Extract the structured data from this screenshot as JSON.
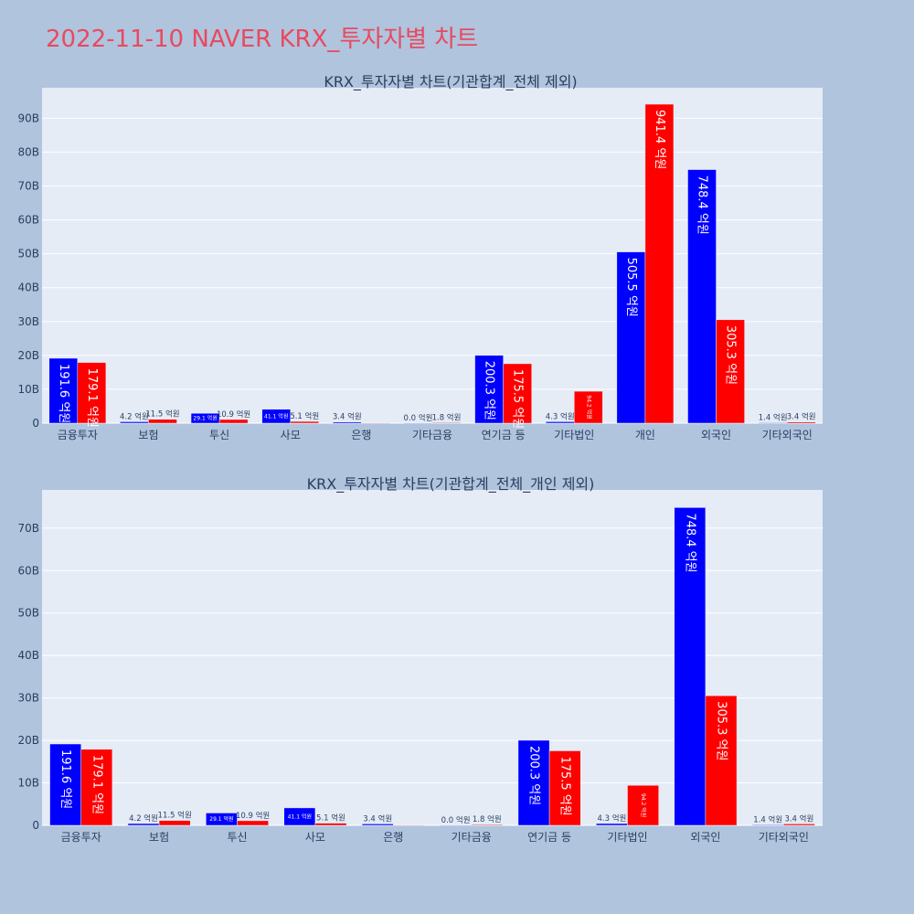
{
  "title": "2022-11-10 NAVER KRX_투자자별 차트",
  "colors": {
    "page_bg": "#b0c4de",
    "plot_bg": "#e5ecf6",
    "grid": "#ffffff",
    "series_a": "#0000ff",
    "series_b": "#ff0000",
    "title_text": "#2a3f5f",
    "main_title": "#e84a5f",
    "tick_text": "#2a3f5f",
    "outside_label": "#2a3f5f",
    "inside_label": "#ffffff"
  },
  "chart_data": [
    {
      "type": "bar",
      "title": "KRX_투자자별 차트(기관합계_전체 제외)",
      "categories": [
        "금융투자",
        "보험",
        "투신",
        "사모",
        "은행",
        "기타금융",
        "연기금 등",
        "기타법인",
        "개인",
        "외국인",
        "기타외국인"
      ],
      "ylim": [
        0,
        99
      ],
      "yticks": [
        0,
        10,
        20,
        30,
        40,
        50,
        60,
        70,
        80,
        90
      ],
      "ytick_labels": [
        "0",
        "10B",
        "20B",
        "30B",
        "40B",
        "50B",
        "60B",
        "70B",
        "80B",
        "90B"
      ],
      "series": [
        {
          "name": "series_a",
          "values": [
            19.16,
            0.42,
            2.91,
            4.11,
            0.34,
            0.0,
            20.03,
            0.43,
            50.55,
            74.84,
            0.14
          ],
          "labels": [
            "191.6 억원",
            "4.2 억원",
            "29.1 억원",
            "41.1 억원",
            "3.4 억원",
            "0.0 억원",
            "200.3 억원",
            "4.3 억원",
            "505.5 억원",
            "748.4 억원",
            "1.4 억원"
          ]
        },
        {
          "name": "series_b",
          "values": [
            17.91,
            1.15,
            1.09,
            0.51,
            0.0,
            0.18,
            17.55,
            9.42,
            94.14,
            30.53,
            0.34
          ],
          "labels": [
            "179.1 억원",
            "11.5 억원",
            "10.9 억원",
            "5.1 억원",
            "",
            "1.8 억원",
            "175.5 억원",
            "94.2 억원",
            "941.4 억원",
            "305.3 억원",
            "3.4 억원"
          ]
        }
      ]
    },
    {
      "type": "bar",
      "title": "KRX_투자자별 차트(기관합계_전체_개인 제외)",
      "categories": [
        "금융투자",
        "보험",
        "투신",
        "사모",
        "은행",
        "기타금융",
        "연기금 등",
        "기타법인",
        "외국인",
        "기타외국인"
      ],
      "ylim": [
        0,
        79
      ],
      "yticks": [
        0,
        10,
        20,
        30,
        40,
        50,
        60,
        70
      ],
      "ytick_labels": [
        "0",
        "10B",
        "20B",
        "30B",
        "40B",
        "50B",
        "60B",
        "70B"
      ],
      "series": [
        {
          "name": "series_a",
          "values": [
            19.16,
            0.42,
            2.91,
            4.11,
            0.34,
            0.0,
            20.03,
            0.43,
            74.84,
            0.14
          ],
          "labels": [
            "191.6 억원",
            "4.2 억원",
            "29.1 억원",
            "41.1 억원",
            "3.4 억원",
            "0.0 억원",
            "200.3 억원",
            "4.3 억원",
            "748.4 억원",
            "1.4 억원"
          ]
        },
        {
          "name": "series_b",
          "values": [
            17.91,
            1.15,
            1.09,
            0.51,
            0.0,
            0.18,
            17.55,
            9.42,
            30.53,
            0.34
          ],
          "labels": [
            "179.1 억원",
            "11.5 억원",
            "10.9 억원",
            "5.1 억원",
            "",
            "1.8 억원",
            "175.5 억원",
            "94.2 억원",
            "305.3 억원",
            "3.4 억원"
          ]
        }
      ]
    }
  ]
}
